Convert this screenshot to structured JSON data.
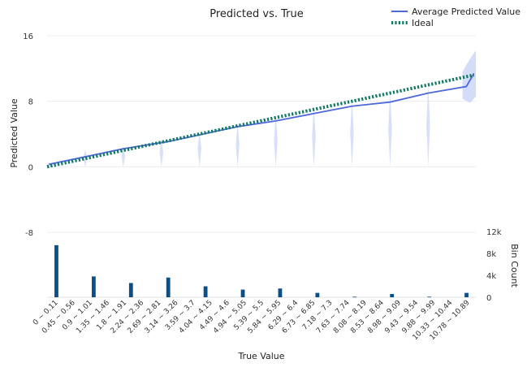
{
  "chart_data": {
    "type": "line",
    "title": "Predicted vs. True",
    "xlabel": "True Value",
    "ylabel": "Predicted Value",
    "y2label": "Bin Count",
    "ylim": [
      -8,
      16
    ],
    "yticks": [
      16,
      8,
      0,
      -8
    ],
    "y2lim": [
      0,
      12000
    ],
    "y2ticks": [
      "12k",
      "8k",
      "4k",
      "0"
    ],
    "y2tick_values": [
      12000,
      8000,
      4000,
      0
    ],
    "legend_position": "top-right",
    "categories": [
      "0 ~ 0.11",
      "0.45 ~ 0.56",
      "0.9 ~ 1.01",
      "1.35 ~ 1.46",
      "1.8 ~ 1.91",
      "2.24 ~ 2.36",
      "2.69 ~ 2.81",
      "3.14 ~ 3.26",
      "3.59 ~ 3.7",
      "4.04 ~ 4.15",
      "4.49 ~ 4.6",
      "4.94 ~ 5.05",
      "5.39 ~ 5.5",
      "5.84 ~ 5.95",
      "6.29 ~ 6.4",
      "6.73 ~ 6.85",
      "7.18 ~ 7.3",
      "7.63 ~ 7.74",
      "8.08 ~ 8.19",
      "8.53 ~ 8.64",
      "8.98 ~ 9.09",
      "9.43 ~ 9.54",
      "9.88 ~ 9.99",
      "10.33 ~ 10.44",
      "10.78 ~ 10.89"
    ],
    "series": [
      {
        "name": "Average Predicted Value",
        "color": "#4e67d9",
        "style": "solid",
        "points": [
          [
            0.05,
            0.3
          ],
          [
            2.0,
            2.2
          ],
          [
            3.2,
            3.1
          ],
          [
            4.1,
            4.0
          ],
          [
            5.0,
            4.9
          ],
          [
            6.0,
            5.6
          ],
          [
            7.0,
            6.5
          ],
          [
            8.0,
            7.4
          ],
          [
            9.0,
            7.9
          ],
          [
            10.0,
            9.0
          ],
          [
            11.0,
            9.8
          ],
          [
            11.2,
            11.4
          ]
        ]
      },
      {
        "name": "Ideal",
        "color": "#117864",
        "style": "dotted",
        "points": [
          [
            0.0,
            0.0
          ],
          [
            11.2,
            11.2
          ]
        ]
      }
    ],
    "spread_band": {
      "color": "#c9d5f5",
      "spikes": [
        [
          0.05,
          -0.2,
          0.6
        ],
        [
          1.0,
          0.0,
          2.1
        ],
        [
          2.0,
          0.0,
          2.6
        ],
        [
          3.0,
          0.0,
          3.4
        ],
        [
          4.0,
          0.0,
          4.4
        ],
        [
          5.0,
          0.0,
          5.4
        ],
        [
          6.0,
          0.0,
          6.4
        ],
        [
          7.0,
          0.0,
          7.4
        ],
        [
          8.0,
          0.0,
          8.3
        ],
        [
          9.0,
          0.0,
          9.3
        ],
        [
          10.0,
          0.0,
          10.2
        ]
      ],
      "last_band": [
        [
          10.9,
          8.3,
          11.6
        ],
        [
          11.1,
          7.8,
          13.2
        ],
        [
          11.25,
          8.6,
          14.2
        ]
      ]
    },
    "bins": {
      "color": "#0b4f8a",
      "values": [
        9500,
        0,
        3800,
        0,
        2600,
        0,
        3600,
        0,
        2000,
        0,
        1400,
        0,
        1600,
        0,
        800,
        0,
        100,
        0,
        600,
        0,
        100,
        0,
        800
      ]
    }
  }
}
